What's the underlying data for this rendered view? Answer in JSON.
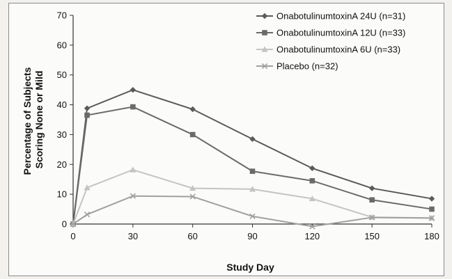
{
  "chart_data": {
    "type": "line",
    "xlabel": "Study Day",
    "ylabel": [
      "Percentage of Subjects",
      "Scoring None or Mild"
    ],
    "xticks": [
      0,
      30,
      60,
      90,
      120,
      150,
      180
    ],
    "yticks": [
      0,
      10,
      20,
      30,
      40,
      50,
      60,
      70
    ],
    "xlim": [
      0,
      180
    ],
    "ylim": [
      0,
      70
    ],
    "grid": false,
    "legend_position": "top-right",
    "series": [
      {
        "name": "OnabotulinumtoxinA 24U (n=31)",
        "marker": "diamond",
        "color": "#5a5a5a",
        "x": [
          0,
          7,
          30,
          60,
          90,
          120,
          150,
          180
        ],
        "y": [
          0,
          38.8,
          45,
          38.5,
          28.5,
          18.7,
          12.0,
          8.5
        ]
      },
      {
        "name": "OnabotulinumtoxinA 12U (n=33)",
        "marker": "square",
        "color": "#6a6a6a",
        "x": [
          0,
          7,
          30,
          60,
          90,
          120,
          150,
          180
        ],
        "y": [
          0,
          36.5,
          39.3,
          30.0,
          17.7,
          14.5,
          8.1,
          5.0
        ]
      },
      {
        "name": "OnabotulinumtoxinA 6U (n=33)",
        "marker": "triangle",
        "color": "#c4c4c4",
        "x": [
          0,
          7,
          30,
          60,
          90,
          120,
          150,
          180
        ],
        "y": [
          0,
          12.2,
          18.2,
          12.0,
          11.7,
          8.5,
          2.3,
          2.0
        ]
      },
      {
        "name": "Placebo (n=32)",
        "marker": "x",
        "color": "#a0a0a0",
        "x": [
          0,
          7,
          30,
          60,
          90,
          120,
          150,
          180
        ],
        "y": [
          0,
          3.2,
          9.4,
          9.2,
          2.6,
          -0.8,
          2.2,
          2.0
        ]
      }
    ]
  }
}
